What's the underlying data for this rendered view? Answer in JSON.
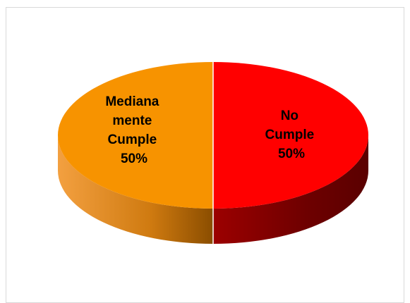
{
  "chart_data": {
    "type": "pie",
    "title": "",
    "three_d": true,
    "slices": [
      {
        "label_lines": [
          "Mediana",
          "mente",
          "Cumple"
        ],
        "percent_label": "50%",
        "value": 50,
        "color": "#f79300",
        "side_color": "#b55a00",
        "text_color": "#000000"
      },
      {
        "label_lines": [
          "No",
          "Cumple"
        ],
        "percent_label": "50%",
        "value": 50,
        "color": "#ff0000",
        "side_color": "#8b0000",
        "text_color": "#000000"
      }
    ]
  }
}
